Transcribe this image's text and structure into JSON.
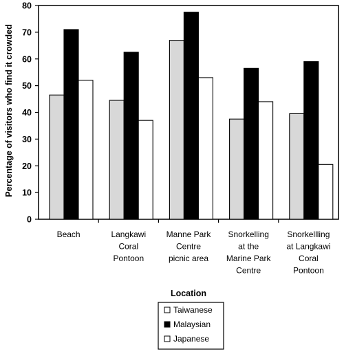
{
  "chart_data": {
    "type": "bar",
    "title": "",
    "xlabel": "Location",
    "ylabel": "Percentage of visitors who find it crowded",
    "ylim": [
      0,
      80
    ],
    "yticks": [
      0,
      10,
      20,
      30,
      40,
      50,
      60,
      70,
      80
    ],
    "grid": false,
    "legend_position": "bottom-center",
    "categories": [
      [
        "Beach"
      ],
      [
        "Langkawi",
        "Coral",
        "Pontoon"
      ],
      [
        "Manne Park",
        "Centre",
        "picnic area"
      ],
      [
        "Snorkelling",
        "at the",
        "Marine Park",
        "Centre"
      ],
      [
        "Snorkellling",
        "at Langkawi",
        "Coral",
        "Pontoon"
      ]
    ],
    "series": [
      {
        "name": "Taiwanese",
        "color": "#d8d8d8",
        "values": [
          46.5,
          44.5,
          67,
          37.5,
          39.5
        ]
      },
      {
        "name": "Malaysian",
        "color": "#000000",
        "values": [
          71,
          62.5,
          77.5,
          56.5,
          59
        ]
      },
      {
        "name": "Japanese",
        "color": "#ffffff",
        "values": [
          52,
          37,
          53,
          44,
          20.5
        ]
      }
    ]
  }
}
